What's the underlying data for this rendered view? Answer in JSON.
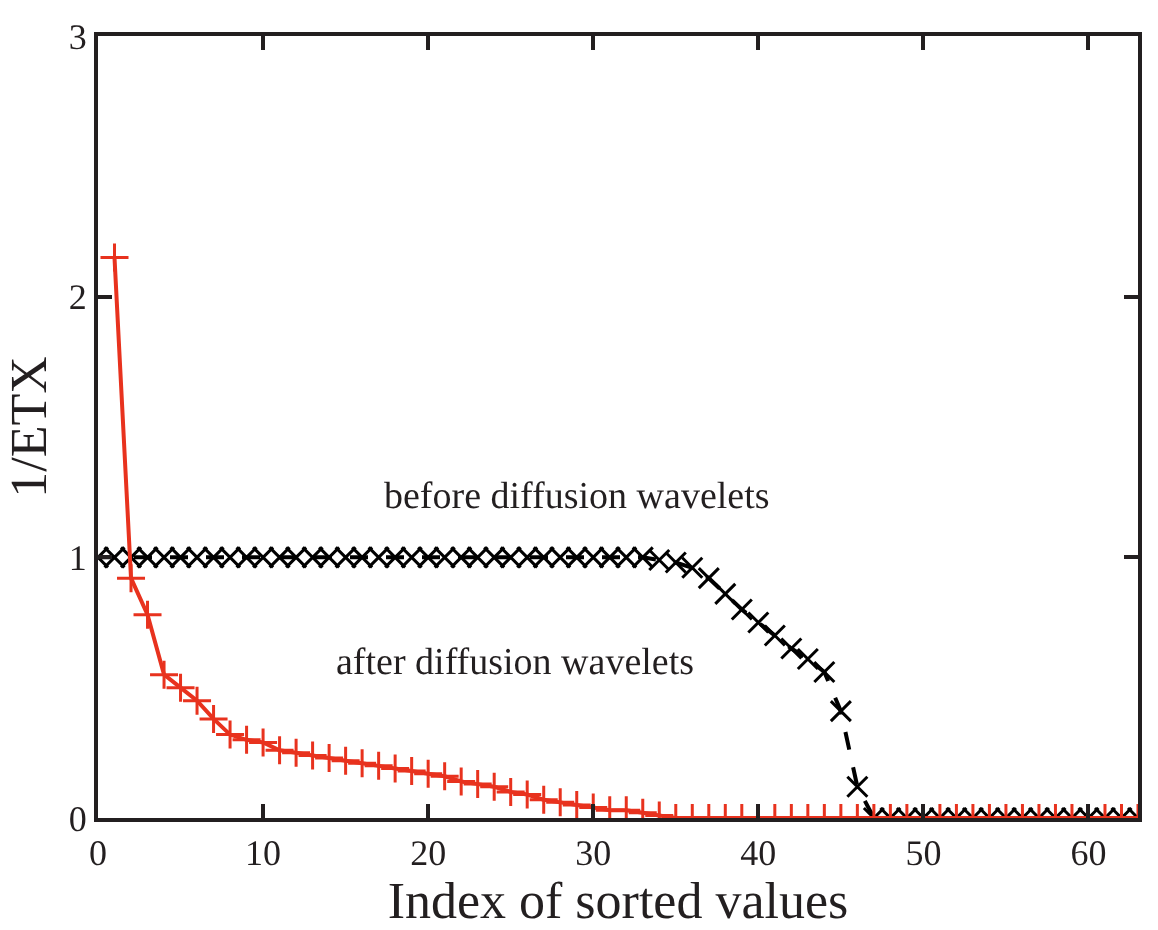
{
  "chart_data": {
    "type": "line",
    "xlabel": "Index of sorted values",
    "ylabel": "1/ETX",
    "xlim": [
      0,
      63
    ],
    "ylim": [
      0,
      3
    ],
    "xticks": [
      0,
      10,
      20,
      30,
      40,
      50,
      60
    ],
    "yticks": [
      0,
      1,
      2,
      3
    ],
    "series": [
      {
        "color": "#000000",
        "marker": "x",
        "line_style": "dashed",
        "x": [
          0,
          1,
          2,
          3,
          4,
          5,
          6,
          7,
          8,
          9,
          10,
          11,
          12,
          13,
          14,
          15,
          16,
          17,
          18,
          19,
          20,
          21,
          22,
          23,
          24,
          25,
          26,
          27,
          28,
          29,
          30,
          31,
          32,
          33,
          34,
          35,
          36,
          37,
          38,
          39,
          40,
          41,
          42,
          43,
          44,
          45,
          46,
          47,
          48,
          49,
          50,
          51,
          52,
          53,
          54,
          55,
          56,
          57,
          58,
          59,
          60,
          61,
          62,
          63
        ],
        "values": [
          1,
          1,
          1,
          1,
          1,
          1,
          1,
          1,
          1,
          1,
          1,
          1,
          1,
          1,
          1,
          1,
          1,
          1,
          1,
          1,
          1,
          1,
          1,
          1,
          1,
          1,
          1,
          1,
          1,
          1,
          1,
          1,
          1,
          1,
          0.99,
          0.98,
          0.96,
          0.92,
          0.86,
          0.8,
          0.75,
          0.7,
          0.65,
          0.61,
          0.56,
          0.41,
          0.12,
          0,
          0,
          0,
          0,
          0,
          0,
          0,
          0,
          0,
          0,
          0,
          0,
          0,
          0,
          0,
          0,
          0
        ]
      },
      {
        "color": "#e8321e",
        "marker": "cross",
        "line_style": "solid",
        "x": [
          1,
          2,
          3,
          4,
          5,
          6,
          7,
          8,
          9,
          10,
          11,
          12,
          13,
          14,
          15,
          16,
          17,
          18,
          19,
          20,
          21,
          22,
          23,
          24,
          25,
          26,
          27,
          28,
          29,
          30,
          31,
          32,
          33,
          34,
          35,
          36,
          37,
          38,
          39,
          40,
          41,
          42,
          43,
          44,
          45,
          46,
          47,
          48,
          49,
          50,
          51,
          52,
          53,
          54,
          55,
          56,
          57,
          58,
          59,
          60,
          61,
          62,
          63
        ],
        "values": [
          2.15,
          0.92,
          0.78,
          0.55,
          0.5,
          0.45,
          0.38,
          0.32,
          0.3,
          0.29,
          0.26,
          0.25,
          0.24,
          0.23,
          0.22,
          0.21,
          0.2,
          0.19,
          0.18,
          0.17,
          0.16,
          0.14,
          0.13,
          0.12,
          0.1,
          0.09,
          0.07,
          0.06,
          0.05,
          0.04,
          0.03,
          0.03,
          0.02,
          0.01,
          0,
          0,
          0,
          0,
          0,
          0,
          0,
          0,
          0,
          0,
          0,
          0,
          0,
          0,
          0,
          0,
          0,
          0,
          0,
          0,
          0,
          0,
          0,
          0,
          0,
          0,
          0,
          0,
          0
        ]
      }
    ],
    "annotations": [
      "before diffusion wavelets",
      "after diffusion wavelets"
    ]
  }
}
